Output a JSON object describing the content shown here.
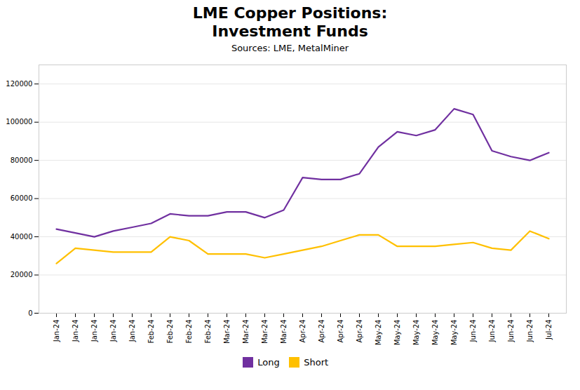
{
  "chart_data": {
    "type": "line",
    "title": "LME Copper Positions:\nInvestment Funds",
    "subtitle": "Sources: LME, MetalMiner",
    "categories": [
      "Jan-24",
      "Jan-24",
      "Jan-24",
      "Jan-24",
      "Jan-24",
      "Feb-24",
      "Feb-24",
      "Feb-24",
      "Feb-24",
      "Mar-24",
      "Mar-24",
      "Mar-24",
      "Mar-24",
      "Apr-24",
      "Apr-24",
      "Apr-24",
      "Apr-24",
      "May-24",
      "May-24",
      "May-24",
      "May-24",
      "May-24",
      "Jun-24",
      "Jun-24",
      "Jun-24",
      "Jun-24",
      "Jul-24"
    ],
    "series": [
      {
        "name": "Long",
        "color": "#7030a0",
        "values": [
          44000,
          42000,
          40000,
          43000,
          45000,
          47000,
          52000,
          51000,
          51000,
          53000,
          53000,
          50000,
          54000,
          71000,
          70000,
          70000,
          73000,
          87000,
          95000,
          93000,
          96000,
          107000,
          104000,
          85000,
          82000,
          80000,
          84000
        ]
      },
      {
        "name": "Short",
        "color": "#ffc000",
        "values": [
          26000,
          34000,
          33000,
          32000,
          32000,
          32000,
          40000,
          38000,
          31000,
          31000,
          31000,
          29000,
          31000,
          33000,
          35000,
          38000,
          41000,
          41000,
          35000,
          35000,
          35000,
          36000,
          37000,
          34000,
          33000,
          43000,
          39000
        ]
      }
    ],
    "ylim": [
      0,
      130000
    ],
    "yticks": [
      0,
      20000,
      40000,
      60000,
      80000,
      100000,
      120000
    ],
    "grid": true,
    "legend": "bottom"
  }
}
